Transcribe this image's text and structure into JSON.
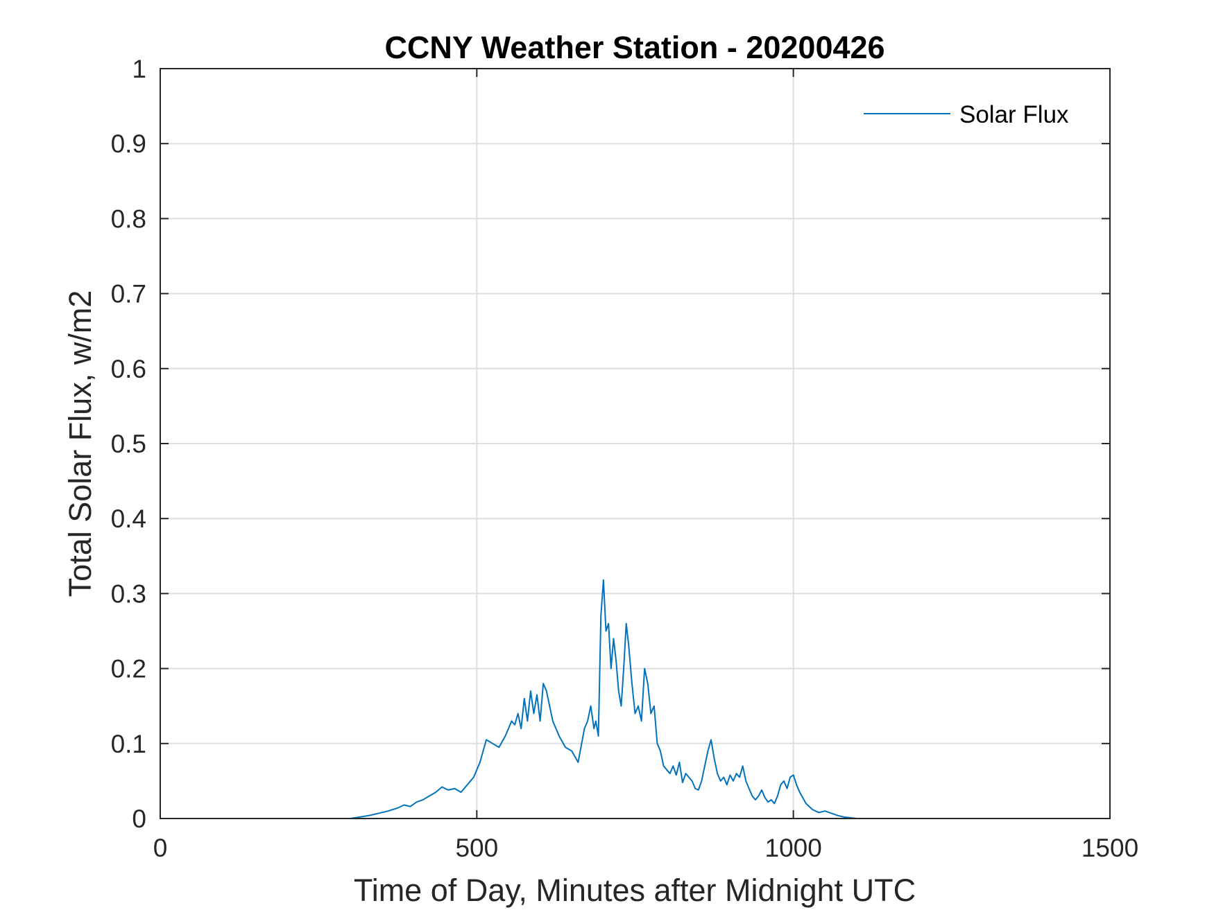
{
  "chart_data": {
    "type": "line",
    "title": "CCNY Weather Station - 20200426",
    "xlabel": "Time of Day, Minutes after Midnight UTC",
    "ylabel": "Total Solar Flux, w/m2",
    "xlim": [
      0,
      1500
    ],
    "ylim": [
      0,
      1
    ],
    "xticks": [
      0,
      500,
      1000,
      1500
    ],
    "xtick_labels": [
      "0",
      "500",
      "1000",
      "1500"
    ],
    "yticks": [
      0,
      0.1,
      0.2,
      0.3,
      0.4,
      0.5,
      0.6,
      0.7,
      0.8,
      0.9,
      1
    ],
    "ytick_labels": [
      "0",
      "0.1",
      "0.2",
      "0.3",
      "0.4",
      "0.5",
      "0.6",
      "0.7",
      "0.8",
      "0.9",
      "1"
    ],
    "grid": true,
    "legend_position": "top-right",
    "series": [
      {
        "name": "Solar Flux",
        "color": "#0072BD",
        "x": [
          0,
          300,
          315,
          330,
          345,
          360,
          375,
          385,
          395,
          405,
          415,
          425,
          435,
          445,
          455,
          465,
          475,
          485,
          495,
          505,
          515,
          525,
          535,
          545,
          555,
          560,
          565,
          570,
          575,
          580,
          585,
          590,
          595,
          600,
          605,
          610,
          620,
          630,
          640,
          650,
          660,
          670,
          675,
          680,
          685,
          688,
          692,
          696,
          700,
          704,
          708,
          712,
          716,
          720,
          724,
          728,
          732,
          736,
          740,
          745,
          750,
          755,
          760,
          765,
          770,
          775,
          780,
          785,
          790,
          795,
          800,
          805,
          810,
          815,
          820,
          825,
          830,
          835,
          840,
          845,
          850,
          855,
          860,
          865,
          870,
          875,
          880,
          885,
          890,
          895,
          900,
          905,
          910,
          915,
          920,
          925,
          930,
          935,
          940,
          945,
          950,
          955,
          960,
          965,
          970,
          975,
          980,
          985,
          990,
          995,
          1000,
          1005,
          1010,
          1020,
          1030,
          1040,
          1050,
          1060,
          1070,
          1080,
          1090,
          1100,
          1150,
          1200,
          1300,
          1440
        ],
        "y": [
          0,
          0,
          0.002,
          0.004,
          0.007,
          0.01,
          0.014,
          0.018,
          0.016,
          0.022,
          0.025,
          0.03,
          0.035,
          0.042,
          0.038,
          0.04,
          0.035,
          0.045,
          0.055,
          0.075,
          0.105,
          0.1,
          0.095,
          0.11,
          0.13,
          0.125,
          0.14,
          0.12,
          0.16,
          0.13,
          0.17,
          0.14,
          0.165,
          0.13,
          0.18,
          0.17,
          0.13,
          0.11,
          0.095,
          0.09,
          0.075,
          0.12,
          0.13,
          0.15,
          0.12,
          0.13,
          0.11,
          0.27,
          0.318,
          0.25,
          0.26,
          0.2,
          0.24,
          0.21,
          0.17,
          0.15,
          0.2,
          0.26,
          0.23,
          0.18,
          0.14,
          0.15,
          0.13,
          0.2,
          0.18,
          0.14,
          0.15,
          0.1,
          0.09,
          0.07,
          0.065,
          0.06,
          0.07,
          0.058,
          0.075,
          0.048,
          0.06,
          0.055,
          0.05,
          0.04,
          0.038,
          0.05,
          0.07,
          0.09,
          0.105,
          0.08,
          0.06,
          0.05,
          0.055,
          0.045,
          0.058,
          0.05,
          0.06,
          0.055,
          0.07,
          0.05,
          0.04,
          0.03,
          0.025,
          0.03,
          0.038,
          0.028,
          0.022,
          0.025,
          0.02,
          0.03,
          0.045,
          0.05,
          0.04,
          0.055,
          0.058,
          0.045,
          0.035,
          0.02,
          0.012,
          0.008,
          0.01,
          0.007,
          0.004,
          0.002,
          0.001,
          0,
          0,
          0,
          0,
          0
        ]
      }
    ]
  }
}
